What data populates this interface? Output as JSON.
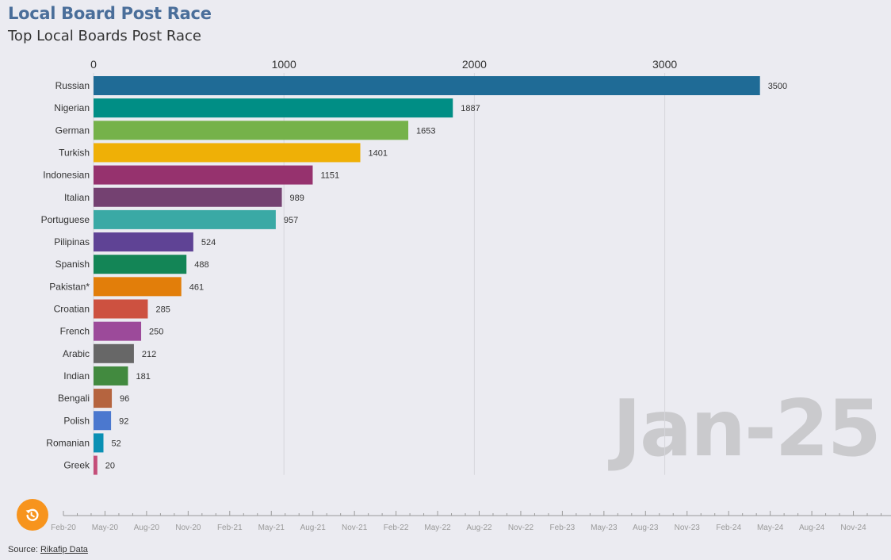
{
  "chart_data": {
    "type": "bar",
    "orientation": "horizontal",
    "title": "Local Board Post Race",
    "subtitle": "Top Local Boards Post Race",
    "categories": [
      "Russian",
      "Nigerian",
      "German",
      "Turkish",
      "Indonesian",
      "Italian",
      "Portuguese",
      "Pilipinas",
      "Spanish",
      "Pakistan*",
      "Croatian",
      "French",
      "Arabic",
      "Indian",
      "Bengali",
      "Polish",
      "Romanian",
      "Greek"
    ],
    "values": [
      3500,
      1887,
      1653,
      1401,
      1151,
      989,
      957,
      524,
      488,
      461,
      285,
      250,
      212,
      181,
      96,
      92,
      52,
      20
    ],
    "colors": [
      "#1f6b96",
      "#008e85",
      "#75b24a",
      "#efb006",
      "#96326e",
      "#744171",
      "#3aa9a5",
      "#5f4395",
      "#138556",
      "#e27e0a",
      "#cd5140",
      "#9c4a9a",
      "#676767",
      "#428a3f",
      "#b5643f",
      "#4b78cf",
      "#0a90b4",
      "#c44d79"
    ],
    "x_axis": {
      "ticks": [
        0,
        1000,
        2000,
        3000
      ],
      "range": [
        0,
        3500
      ],
      "position": "top",
      "grid": true
    },
    "current_period": "Jan-25",
    "timeline": {
      "labels": [
        "Feb-20",
        "May-20",
        "Aug-20",
        "Nov-20",
        "Feb-21",
        "May-21",
        "Aug-21",
        "Nov-21",
        "Feb-22",
        "May-22",
        "Aug-22",
        "Nov-22",
        "Feb-23",
        "May-23",
        "Aug-23",
        "Nov-23",
        "Feb-24",
        "May-24",
        "Aug-24",
        "Nov-24"
      ],
      "progress": 1.0
    }
  },
  "controls": {
    "replay_icon": "replay-icon",
    "accent": "#f7941d"
  },
  "footer": {
    "source_prefix": "Source: ",
    "source_link": "Rikafip Data"
  }
}
